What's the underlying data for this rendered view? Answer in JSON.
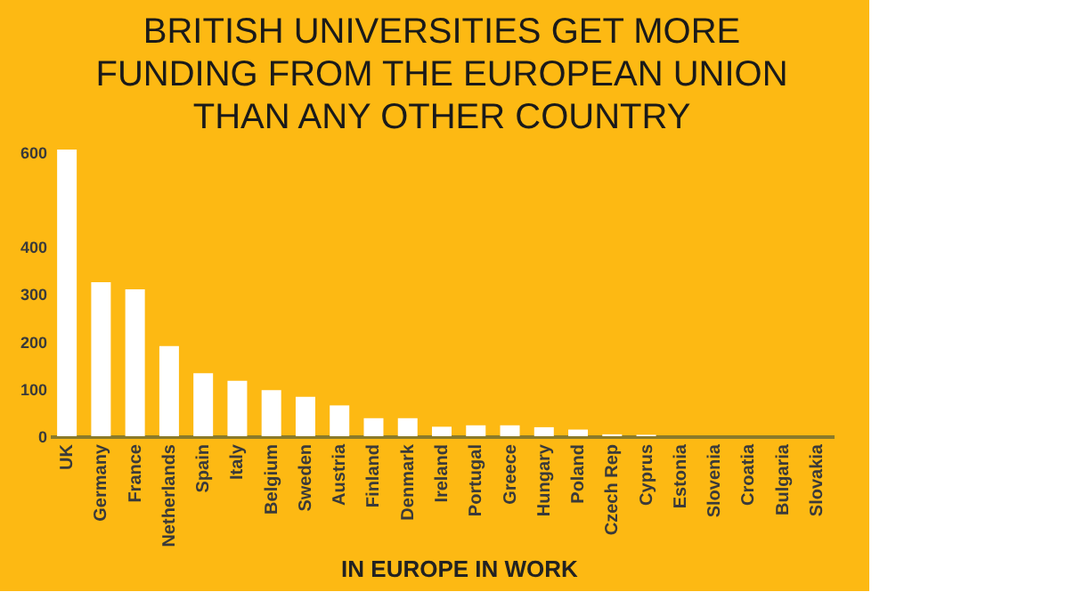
{
  "chart_data": {
    "type": "bar",
    "title": [
      "BRITISH UNIVERSITIES GET MORE",
      "FUNDING FROM THE EUROPEAN UNION",
      "THAN ANY OTHER COUNTRY"
    ],
    "categories": [
      "UK",
      "Germany",
      "France",
      "Netherlands",
      "Spain",
      "Italy",
      "Belgium",
      "Sweden",
      "Austria",
      "Finland",
      "Denmark",
      "Ireland",
      "Portugal",
      "Greece",
      "Hungary",
      "Poland",
      "Czech Rep",
      "Cyprus",
      "Estonia",
      "Slovenia",
      "Croatia",
      "Bulgaria",
      "Slovakia"
    ],
    "values": [
      605,
      325,
      310,
      190,
      133,
      117,
      97,
      83,
      65,
      38,
      38,
      20,
      23,
      23,
      19,
      14,
      4,
      3,
      0,
      0,
      0,
      0,
      0
    ],
    "color": "#ffffff",
    "ylim": [
      0,
      620
    ],
    "yticks": [
      0,
      100,
      200,
      300,
      400,
      600
    ],
    "grid": false,
    "annotations": [
      "IN EUROPE IN WORK"
    ]
  }
}
